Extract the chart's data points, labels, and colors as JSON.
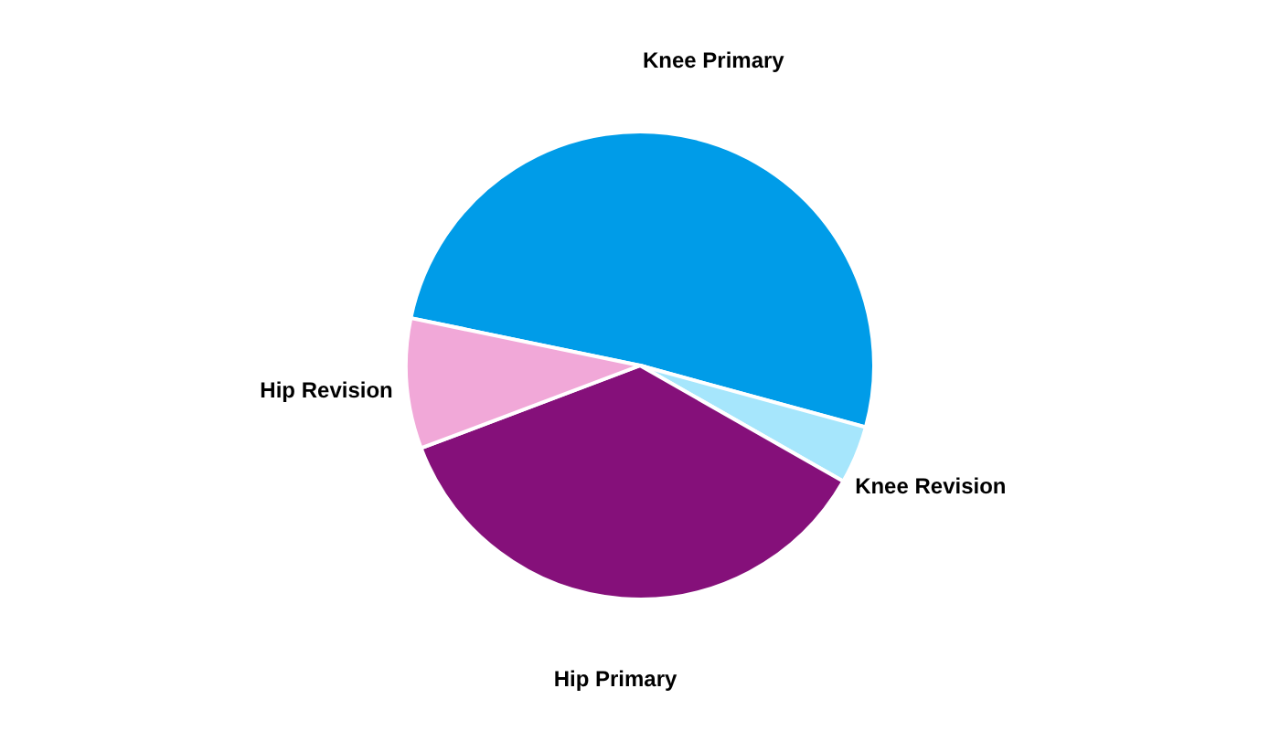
{
  "chart_data": {
    "type": "pie",
    "categories": [
      "Knee Primary",
      "Knee Revision",
      "Hip Primary",
      "Hip Revision"
    ],
    "values": [
      51,
      4,
      36,
      9
    ],
    "colors": [
      "#009ce8",
      "#a6e6fc",
      "#85107a",
      "#f1a8d8"
    ]
  }
}
